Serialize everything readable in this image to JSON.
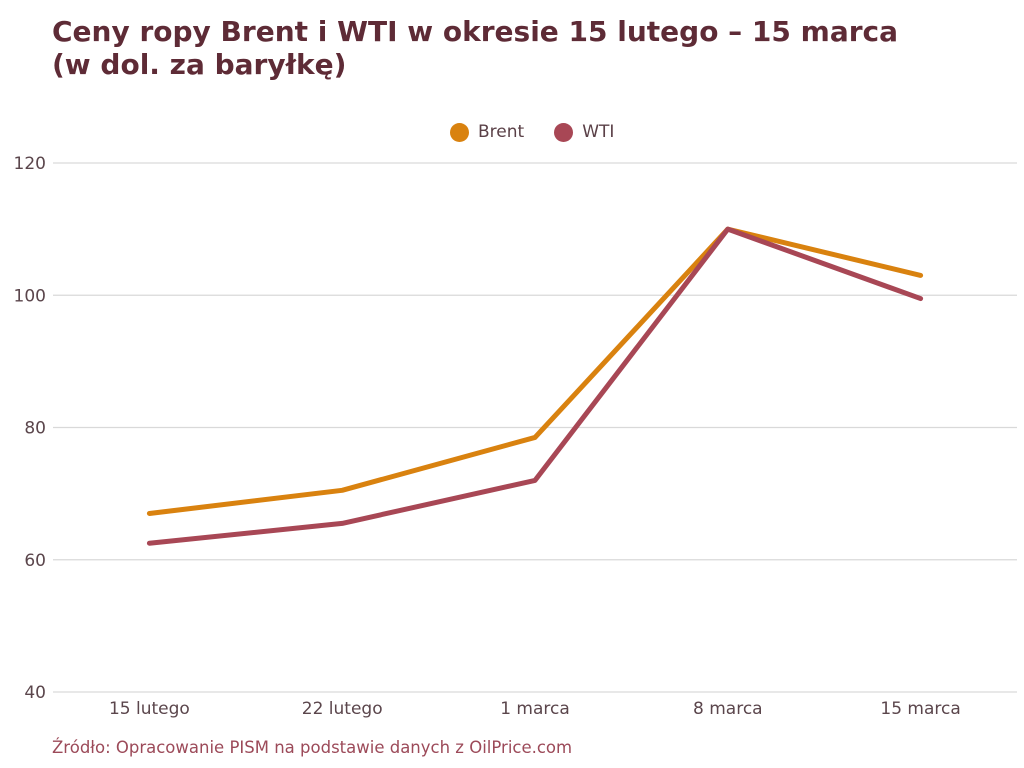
{
  "header": {
    "title_line1": "Ceny ropy Brent i WTI w okresie 15 lutego – 15 marca",
    "title_line2": "(w dol. za baryłkę)"
  },
  "legend": {
    "items": [
      {
        "label": "Brent",
        "color": "#d9820f"
      },
      {
        "label": "WTI",
        "color": "#a84755"
      }
    ]
  },
  "chart_data": {
    "type": "line",
    "title": "Ceny ropy Brent i WTI w okresie 15 lutego – 15 marca (w dol. za baryłkę)",
    "ylabel": "",
    "xlabel": "",
    "unit": "dol. za baryłkę",
    "categories": [
      "15 lutego",
      "22 lutego",
      "1 marca",
      "8 marca",
      "15 marca"
    ],
    "series": [
      {
        "name": "Brent",
        "color": "#d9820f",
        "values": [
          67,
          70.5,
          78.5,
          110,
          103
        ]
      },
      {
        "name": "WTI",
        "color": "#a84755",
        "values": [
          62.5,
          65.5,
          72,
          110,
          99.5
        ]
      }
    ],
    "ylim": [
      40,
      120
    ],
    "yticks": [
      40,
      60,
      80,
      100,
      120
    ],
    "grid": "horizontal",
    "legend_position": "top-center"
  },
  "footer": {
    "source": "Źródło: Opracowanie PISM na podstawie danych z OilPrice.com"
  },
  "colors": {
    "title": "#5e2b36",
    "legend_text": "#5a4047",
    "tick_text": "#5b464c",
    "source_text": "#9c4a59",
    "gridline": "#d9d9d9",
    "background": "#ffffff"
  }
}
